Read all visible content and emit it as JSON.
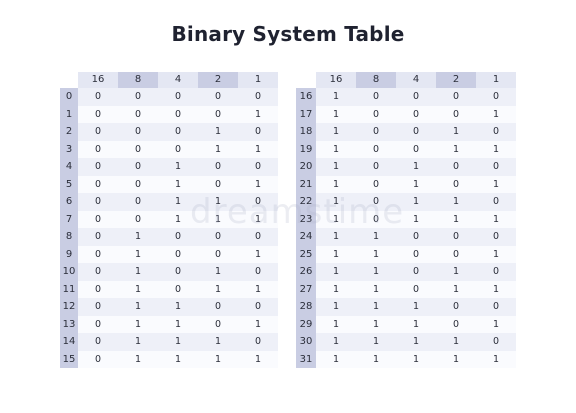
{
  "title": "Binary System Table",
  "watermark": "dreamstime",
  "colors": {
    "header_light": "#e4e7f3",
    "header_dark": "#c9cde3",
    "row_shade": "#eef0f8",
    "row_light": "#fafbfe"
  },
  "columns": [
    "16",
    "8",
    "4",
    "2",
    "1"
  ],
  "left_table": {
    "rows": [
      {
        "n": "0",
        "bits": [
          "0",
          "0",
          "0",
          "0",
          "0"
        ]
      },
      {
        "n": "1",
        "bits": [
          "0",
          "0",
          "0",
          "0",
          "1"
        ]
      },
      {
        "n": "2",
        "bits": [
          "0",
          "0",
          "0",
          "1",
          "0"
        ]
      },
      {
        "n": "3",
        "bits": [
          "0",
          "0",
          "0",
          "1",
          "1"
        ]
      },
      {
        "n": "4",
        "bits": [
          "0",
          "0",
          "1",
          "0",
          "0"
        ]
      },
      {
        "n": "5",
        "bits": [
          "0",
          "0",
          "1",
          "0",
          "1"
        ]
      },
      {
        "n": "6",
        "bits": [
          "0",
          "0",
          "1",
          "1",
          "0"
        ]
      },
      {
        "n": "7",
        "bits": [
          "0",
          "0",
          "1",
          "1",
          "1"
        ]
      },
      {
        "n": "8",
        "bits": [
          "0",
          "1",
          "0",
          "0",
          "0"
        ]
      },
      {
        "n": "9",
        "bits": [
          "0",
          "1",
          "0",
          "0",
          "1"
        ]
      },
      {
        "n": "10",
        "bits": [
          "0",
          "1",
          "0",
          "1",
          "0"
        ]
      },
      {
        "n": "11",
        "bits": [
          "0",
          "1",
          "0",
          "1",
          "1"
        ]
      },
      {
        "n": "12",
        "bits": [
          "0",
          "1",
          "1",
          "0",
          "0"
        ]
      },
      {
        "n": "13",
        "bits": [
          "0",
          "1",
          "1",
          "0",
          "1"
        ]
      },
      {
        "n": "14",
        "bits": [
          "0",
          "1",
          "1",
          "1",
          "0"
        ]
      },
      {
        "n": "15",
        "bits": [
          "0",
          "1",
          "1",
          "1",
          "1"
        ]
      }
    ]
  },
  "right_table": {
    "rows": [
      {
        "n": "16",
        "bits": [
          "1",
          "0",
          "0",
          "0",
          "0"
        ]
      },
      {
        "n": "17",
        "bits": [
          "1",
          "0",
          "0",
          "0",
          "1"
        ]
      },
      {
        "n": "18",
        "bits": [
          "1",
          "0",
          "0",
          "1",
          "0"
        ]
      },
      {
        "n": "19",
        "bits": [
          "1",
          "0",
          "0",
          "1",
          "1"
        ]
      },
      {
        "n": "20",
        "bits": [
          "1",
          "0",
          "1",
          "0",
          "0"
        ]
      },
      {
        "n": "21",
        "bits": [
          "1",
          "0",
          "1",
          "0",
          "1"
        ]
      },
      {
        "n": "22",
        "bits": [
          "1",
          "0",
          "1",
          "1",
          "0"
        ]
      },
      {
        "n": "23",
        "bits": [
          "1",
          "0",
          "1",
          "1",
          "1"
        ]
      },
      {
        "n": "24",
        "bits": [
          "1",
          "1",
          "0",
          "0",
          "0"
        ]
      },
      {
        "n": "25",
        "bits": [
          "1",
          "1",
          "0",
          "0",
          "1"
        ]
      },
      {
        "n": "26",
        "bits": [
          "1",
          "1",
          "0",
          "1",
          "0"
        ]
      },
      {
        "n": "27",
        "bits": [
          "1",
          "1",
          "0",
          "1",
          "1"
        ]
      },
      {
        "n": "28",
        "bits": [
          "1",
          "1",
          "1",
          "0",
          "0"
        ]
      },
      {
        "n": "29",
        "bits": [
          "1",
          "1",
          "1",
          "0",
          "1"
        ]
      },
      {
        "n": "30",
        "bits": [
          "1",
          "1",
          "1",
          "1",
          "0"
        ]
      },
      {
        "n": "31",
        "bits": [
          "1",
          "1",
          "1",
          "1",
          "1"
        ]
      }
    ]
  }
}
